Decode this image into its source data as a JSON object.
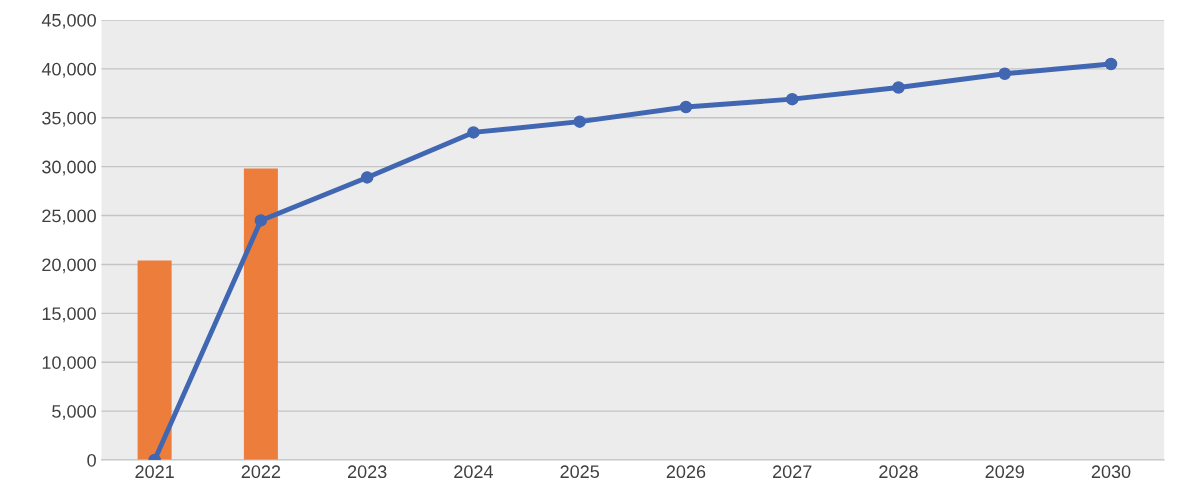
{
  "chart_data": {
    "type": "bar",
    "categories": [
      "2021",
      "2022",
      "2023",
      "2024",
      "2025",
      "2026",
      "2027",
      "2028",
      "2029",
      "2030"
    ],
    "series": [
      {
        "color": "#ed7d3a",
        "values": [
          20400,
          29800,
          null,
          null,
          null,
          null,
          null,
          null,
          null,
          null
        ]
      },
      {
        "type": "line",
        "color": "#4267b2",
        "marker": "circle",
        "values": [
          0,
          24500,
          28900,
          33500,
          34600,
          36100,
          36900,
          38100,
          39500,
          40500
        ]
      }
    ],
    "ylim": [
      0,
      45000
    ],
    "yticks": [
      {
        "value": 0,
        "label": "0"
      },
      {
        "value": 5000,
        "label": "5,000"
      },
      {
        "value": 10000,
        "label": "10,000"
      },
      {
        "value": 15000,
        "label": "15,000"
      },
      {
        "value": 20000,
        "label": "20,000"
      },
      {
        "value": 25000,
        "label": "25,000"
      },
      {
        "value": 30000,
        "label": "30,000"
      },
      {
        "value": 35000,
        "label": "35,000"
      },
      {
        "value": 40000,
        "label": "40,000"
      },
      {
        "value": 45000,
        "label": "45,000"
      }
    ],
    "grid": "y",
    "legend": false
  }
}
